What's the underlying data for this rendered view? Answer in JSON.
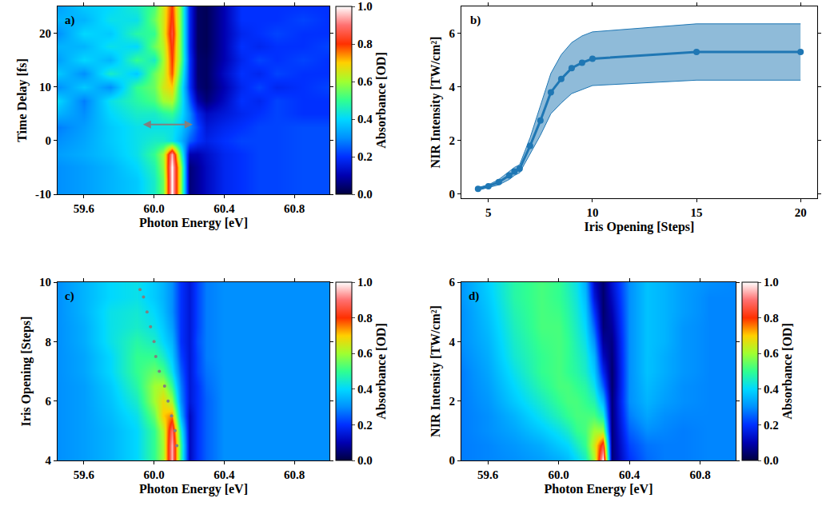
{
  "chart_data": [
    {
      "type": "heatmap",
      "label": "a)",
      "xlabel": "Photon Energy [eV]",
      "ylabel": "Time Delay [fs]",
      "x": [
        59.45,
        59.6,
        59.75,
        59.9,
        60.0,
        60.05,
        60.1,
        60.15,
        60.2,
        60.25,
        60.3,
        60.4,
        60.5,
        60.6,
        60.7,
        60.85,
        61.0
      ],
      "y": [
        -10,
        -7.5,
        -5,
        -2.5,
        0,
        2.5,
        5,
        7.5,
        10,
        12.5,
        15,
        17.5,
        20,
        22.5,
        25
      ],
      "z": [
        [
          0.3,
          0.32,
          0.35,
          0.38,
          0.45,
          0.55,
          1.0,
          0.6,
          0.05,
          0.08,
          0.12,
          0.18,
          0.2,
          0.22,
          0.22,
          0.23,
          0.23
        ],
        [
          0.3,
          0.32,
          0.35,
          0.38,
          0.45,
          0.55,
          1.0,
          0.6,
          0.05,
          0.08,
          0.12,
          0.18,
          0.2,
          0.22,
          0.22,
          0.23,
          0.23
        ],
        [
          0.3,
          0.32,
          0.35,
          0.4,
          0.47,
          0.58,
          1.0,
          0.6,
          0.05,
          0.08,
          0.12,
          0.18,
          0.2,
          0.22,
          0.22,
          0.23,
          0.23
        ],
        [
          0.32,
          0.34,
          0.37,
          0.42,
          0.5,
          0.6,
          0.95,
          0.5,
          0.1,
          0.1,
          0.13,
          0.18,
          0.2,
          0.22,
          0.22,
          0.23,
          0.23
        ],
        [
          0.3,
          0.33,
          0.38,
          0.42,
          0.45,
          0.45,
          0.42,
          0.35,
          0.25,
          0.2,
          0.17,
          0.2,
          0.22,
          0.22,
          0.22,
          0.23,
          0.23
        ],
        [
          0.28,
          0.32,
          0.38,
          0.42,
          0.42,
          0.42,
          0.42,
          0.38,
          0.3,
          0.22,
          0.15,
          0.18,
          0.2,
          0.22,
          0.22,
          0.23,
          0.23
        ],
        [
          0.35,
          0.3,
          0.4,
          0.45,
          0.45,
          0.48,
          0.5,
          0.42,
          0.3,
          0.18,
          0.12,
          0.15,
          0.18,
          0.2,
          0.22,
          0.2,
          0.2
        ],
        [
          0.4,
          0.28,
          0.42,
          0.48,
          0.52,
          0.6,
          0.62,
          0.45,
          0.25,
          0.1,
          0.05,
          0.12,
          0.2,
          0.18,
          0.22,
          0.2,
          0.2
        ],
        [
          0.3,
          0.38,
          0.3,
          0.5,
          0.55,
          0.65,
          0.7,
          0.45,
          0.2,
          0.05,
          0.03,
          0.1,
          0.18,
          0.22,
          0.18,
          0.2,
          0.22
        ],
        [
          0.38,
          0.3,
          0.45,
          0.38,
          0.55,
          0.62,
          0.78,
          0.5,
          0.2,
          0.04,
          0.03,
          0.12,
          0.2,
          0.18,
          0.22,
          0.2,
          0.2
        ],
        [
          0.32,
          0.4,
          0.35,
          0.5,
          0.45,
          0.6,
          0.8,
          0.55,
          0.2,
          0.04,
          0.03,
          0.1,
          0.18,
          0.22,
          0.2,
          0.22,
          0.2
        ],
        [
          0.35,
          0.35,
          0.42,
          0.4,
          0.55,
          0.62,
          0.82,
          0.55,
          0.18,
          0.03,
          0.02,
          0.1,
          0.2,
          0.18,
          0.2,
          0.2,
          0.22
        ],
        [
          0.3,
          0.4,
          0.38,
          0.48,
          0.5,
          0.65,
          0.85,
          0.55,
          0.18,
          0.03,
          0.02,
          0.1,
          0.18,
          0.2,
          0.22,
          0.2,
          0.2
        ],
        [
          0.35,
          0.35,
          0.42,
          0.42,
          0.55,
          0.65,
          0.82,
          0.55,
          0.18,
          0.03,
          0.02,
          0.1,
          0.2,
          0.2,
          0.2,
          0.22,
          0.2
        ],
        [
          0.32,
          0.38,
          0.4,
          0.45,
          0.52,
          0.65,
          0.8,
          0.55,
          0.18,
          0.03,
          0.02,
          0.1,
          0.2,
          0.2,
          0.2,
          0.2,
          0.2
        ]
      ],
      "xlim": [
        59.45,
        61.0
      ],
      "xticks": [
        59.6,
        {
          "value": 60,
          "label": "60.0"
        },
        60.4,
        60.8
      ],
      "ylim": [
        -10,
        25
      ],
      "yticks": [
        -10,
        0,
        10,
        20
      ],
      "colorbar_label": "Absorbance [OD]",
      "zlim": [
        0,
        1
      ],
      "zticks": [
        {
          "value": 0,
          "label": "0.0"
        },
        {
          "value": 0.2,
          "label": "0.2"
        },
        {
          "value": 0.4,
          "label": "0.4"
        },
        {
          "value": 0.6,
          "label": "0.6"
        },
        {
          "value": 0.8,
          "label": "0.8"
        },
        {
          "value": 1,
          "label": "1.0"
        }
      ],
      "arrow": {
        "x": [
          59.93,
          60.22
        ],
        "y": 3,
        "color": "#808080"
      }
    },
    {
      "type": "line",
      "label": "b)",
      "xlabel": "Iris Opening [Steps]",
      "ylabel": "NIR Intensity [TW/cm²]",
      "x": [
        4.5,
        5,
        5.5,
        6,
        6.25,
        6.5,
        7,
        7.5,
        8,
        8.5,
        9,
        9.5,
        10,
        15,
        20
      ],
      "values": [
        0.2,
        0.3,
        0.45,
        0.7,
        0.85,
        0.95,
        1.8,
        2.75,
        3.8,
        4.3,
        4.7,
        4.9,
        5.05,
        5.3,
        5.3
      ],
      "lower": [
        0.15,
        0.25,
        0.35,
        0.55,
        0.7,
        0.8,
        1.5,
        2.2,
        3.0,
        3.4,
        3.75,
        3.9,
        4.05,
        4.25,
        4.25
      ],
      "upper": [
        0.25,
        0.35,
        0.55,
        0.85,
        1.0,
        1.1,
        2.1,
        3.3,
        4.5,
        5.2,
        5.65,
        5.9,
        6.05,
        6.35,
        6.35
      ],
      "color": "#1f77b4",
      "marker": "circle",
      "xlim": [
        3.7,
        20.8
      ],
      "xticks": [
        5,
        10,
        15,
        20
      ],
      "ylim": [
        -0.15,
        7
      ],
      "yticks": [
        0,
        2,
        4,
        6
      ]
    },
    {
      "type": "heatmap",
      "label": "c)",
      "xlabel": "Photon Energy [eV]",
      "ylabel": "Iris Opening [Steps]",
      "x": [
        59.45,
        59.6,
        59.75,
        59.9,
        60.0,
        60.05,
        60.1,
        60.15,
        60.2,
        60.25,
        60.3,
        60.4,
        60.5,
        60.6,
        60.7,
        60.85,
        61.0
      ],
      "y": [
        4,
        4.5,
        5,
        5.5,
        6,
        6.5,
        7,
        7.5,
        8,
        8.5,
        9,
        9.5,
        10
      ],
      "z": [
        [
          0.3,
          0.32,
          0.35,
          0.4,
          0.5,
          0.6,
          0.95,
          0.5,
          0.12,
          0.2,
          0.25,
          0.3,
          0.3,
          0.3,
          0.3,
          0.3,
          0.3
        ],
        [
          0.3,
          0.32,
          0.35,
          0.4,
          0.5,
          0.6,
          0.95,
          0.5,
          0.12,
          0.2,
          0.25,
          0.3,
          0.3,
          0.3,
          0.3,
          0.3,
          0.3
        ],
        [
          0.3,
          0.32,
          0.35,
          0.4,
          0.5,
          0.62,
          0.9,
          0.45,
          0.12,
          0.2,
          0.25,
          0.3,
          0.3,
          0.3,
          0.3,
          0.3,
          0.3
        ],
        [
          0.3,
          0.32,
          0.36,
          0.42,
          0.55,
          0.7,
          0.75,
          0.35,
          0.12,
          0.2,
          0.25,
          0.3,
          0.3,
          0.3,
          0.3,
          0.3,
          0.3
        ],
        [
          0.3,
          0.32,
          0.37,
          0.45,
          0.6,
          0.68,
          0.6,
          0.3,
          0.15,
          0.2,
          0.25,
          0.3,
          0.3,
          0.3,
          0.3,
          0.3,
          0.3
        ],
        [
          0.3,
          0.32,
          0.38,
          0.48,
          0.6,
          0.62,
          0.5,
          0.28,
          0.15,
          0.2,
          0.26,
          0.3,
          0.3,
          0.3,
          0.3,
          0.3,
          0.3
        ],
        [
          0.3,
          0.33,
          0.4,
          0.5,
          0.55,
          0.52,
          0.42,
          0.25,
          0.15,
          0.22,
          0.27,
          0.3,
          0.3,
          0.3,
          0.3,
          0.3,
          0.3
        ],
        [
          0.3,
          0.33,
          0.4,
          0.5,
          0.5,
          0.45,
          0.38,
          0.22,
          0.15,
          0.22,
          0.28,
          0.3,
          0.3,
          0.3,
          0.3,
          0.3,
          0.3
        ],
        [
          0.3,
          0.34,
          0.42,
          0.48,
          0.45,
          0.4,
          0.35,
          0.2,
          0.15,
          0.23,
          0.28,
          0.3,
          0.3,
          0.3,
          0.3,
          0.3,
          0.3
        ],
        [
          0.3,
          0.34,
          0.42,
          0.45,
          0.42,
          0.38,
          0.32,
          0.2,
          0.15,
          0.22,
          0.28,
          0.3,
          0.3,
          0.3,
          0.3,
          0.3,
          0.3
        ],
        [
          0.3,
          0.35,
          0.42,
          0.44,
          0.4,
          0.36,
          0.3,
          0.2,
          0.15,
          0.22,
          0.28,
          0.3,
          0.3,
          0.3,
          0.3,
          0.3,
          0.3
        ],
        [
          0.3,
          0.35,
          0.4,
          0.42,
          0.38,
          0.35,
          0.3,
          0.2,
          0.15,
          0.22,
          0.28,
          0.3,
          0.3,
          0.3,
          0.3,
          0.3,
          0.3
        ],
        [
          0.3,
          0.35,
          0.4,
          0.42,
          0.38,
          0.35,
          0.3,
          0.2,
          0.15,
          0.22,
          0.28,
          0.3,
          0.3,
          0.3,
          0.3,
          0.3,
          0.3
        ]
      ],
      "xlim": [
        59.45,
        61.0
      ],
      "xticks": [
        59.6,
        {
          "value": 60,
          "label": "60.0"
        },
        60.4,
        60.8
      ],
      "ylim": [
        4,
        10
      ],
      "yticks": [
        4,
        6,
        8,
        10
      ],
      "colorbar_label": "Absorbance [OD]",
      "zlim": [
        0,
        1
      ],
      "zticks": [
        {
          "value": 0,
          "label": "0.0"
        },
        {
          "value": 0.2,
          "label": "0.2"
        },
        {
          "value": 0.4,
          "label": "0.4"
        },
        {
          "value": 0.6,
          "label": "0.6"
        },
        {
          "value": 0.8,
          "label": "0.8"
        },
        {
          "value": 1,
          "label": "1.0"
        }
      ],
      "markers": {
        "x": [
          60.13,
          60.12,
          60.1,
          60.08,
          60.06,
          60.03,
          60.01,
          60.0,
          59.98,
          59.96,
          59.94,
          59.92
        ],
        "y": [
          4.5,
          5.0,
          5.5,
          6.0,
          6.5,
          7.0,
          7.5,
          8.0,
          8.5,
          9.0,
          9.5,
          9.75
        ],
        "color": "#808080",
        "marker": "circle"
      }
    },
    {
      "type": "heatmap",
      "label": "d)",
      "xlabel": "Photon Energy [eV]",
      "ylabel": "NIR Intensity [TW/cm²]",
      "x": [
        59.45,
        59.6,
        59.75,
        59.9,
        60.0,
        60.05,
        60.1,
        60.15,
        60.2,
        60.25,
        60.3,
        60.4,
        60.5,
        60.6,
        60.7,
        60.85,
        61.0
      ],
      "y": [
        0,
        0.5,
        1,
        1.5,
        2,
        2.5,
        3,
        3.5,
        4,
        4.5,
        5,
        5.5,
        6
      ],
      "z": [
        [
          0.28,
          0.29,
          0.3,
          0.32,
          0.34,
          0.36,
          0.4,
          0.45,
          0.6,
          1.0,
          0.05,
          0.2,
          0.26,
          0.28,
          0.28,
          0.29,
          0.29
        ],
        [
          0.28,
          0.29,
          0.31,
          0.34,
          0.38,
          0.4,
          0.45,
          0.5,
          0.65,
          0.85,
          0.05,
          0.22,
          0.27,
          0.28,
          0.28,
          0.29,
          0.29
        ],
        [
          0.28,
          0.3,
          0.33,
          0.38,
          0.42,
          0.45,
          0.5,
          0.52,
          0.6,
          0.6,
          0.05,
          0.25,
          0.3,
          0.29,
          0.28,
          0.29,
          0.29
        ],
        [
          0.28,
          0.3,
          0.35,
          0.42,
          0.47,
          0.5,
          0.52,
          0.52,
          0.52,
          0.45,
          0.05,
          0.28,
          0.33,
          0.3,
          0.29,
          0.29,
          0.29
        ],
        [
          0.28,
          0.31,
          0.38,
          0.45,
          0.5,
          0.52,
          0.52,
          0.5,
          0.47,
          0.35,
          0.05,
          0.3,
          0.35,
          0.32,
          0.3,
          0.29,
          0.29
        ],
        [
          0.28,
          0.32,
          0.4,
          0.48,
          0.52,
          0.52,
          0.5,
          0.48,
          0.42,
          0.25,
          0.04,
          0.3,
          0.36,
          0.33,
          0.3,
          0.29,
          0.29
        ],
        [
          0.28,
          0.33,
          0.42,
          0.5,
          0.52,
          0.5,
          0.48,
          0.45,
          0.38,
          0.18,
          0.04,
          0.3,
          0.37,
          0.34,
          0.31,
          0.29,
          0.29
        ],
        [
          0.29,
          0.34,
          0.44,
          0.5,
          0.52,
          0.5,
          0.47,
          0.44,
          0.35,
          0.12,
          0.05,
          0.3,
          0.37,
          0.34,
          0.31,
          0.29,
          0.29
        ],
        [
          0.3,
          0.35,
          0.45,
          0.51,
          0.52,
          0.5,
          0.46,
          0.42,
          0.3,
          0.08,
          0.06,
          0.3,
          0.37,
          0.35,
          0.31,
          0.29,
          0.29
        ],
        [
          0.3,
          0.36,
          0.46,
          0.52,
          0.52,
          0.49,
          0.45,
          0.4,
          0.25,
          0.05,
          0.08,
          0.3,
          0.37,
          0.35,
          0.31,
          0.29,
          0.29
        ],
        [
          0.3,
          0.37,
          0.47,
          0.52,
          0.51,
          0.48,
          0.44,
          0.38,
          0.2,
          0.04,
          0.1,
          0.3,
          0.37,
          0.35,
          0.32,
          0.29,
          0.29
        ],
        [
          0.31,
          0.38,
          0.48,
          0.52,
          0.5,
          0.47,
          0.43,
          0.36,
          0.15,
          0.04,
          0.12,
          0.3,
          0.37,
          0.35,
          0.32,
          0.29,
          0.29
        ],
        [
          0.31,
          0.39,
          0.48,
          0.52,
          0.5,
          0.46,
          0.42,
          0.34,
          0.12,
          0.04,
          0.14,
          0.3,
          0.37,
          0.35,
          0.32,
          0.3,
          0.29
        ]
      ],
      "xlim": [
        59.45,
        61.0
      ],
      "xticks": [
        59.6,
        {
          "value": 60,
          "label": "60.0"
        },
        60.4,
        60.8
      ],
      "ylim": [
        0,
        6
      ],
      "yticks": [
        0,
        2,
        4,
        6
      ],
      "colorbar_label": "Absorbance [OD]",
      "zlim": [
        0,
        1
      ],
      "zticks": [
        {
          "value": 0,
          "label": "0.0"
        },
        {
          "value": 0.2,
          "label": "0.2"
        },
        {
          "value": 0.4,
          "label": "0.4"
        },
        {
          "value": 0.6,
          "label": "0.6"
        },
        {
          "value": 0.8,
          "label": "0.8"
        },
        {
          "value": 1,
          "label": "1.0"
        }
      ]
    }
  ]
}
